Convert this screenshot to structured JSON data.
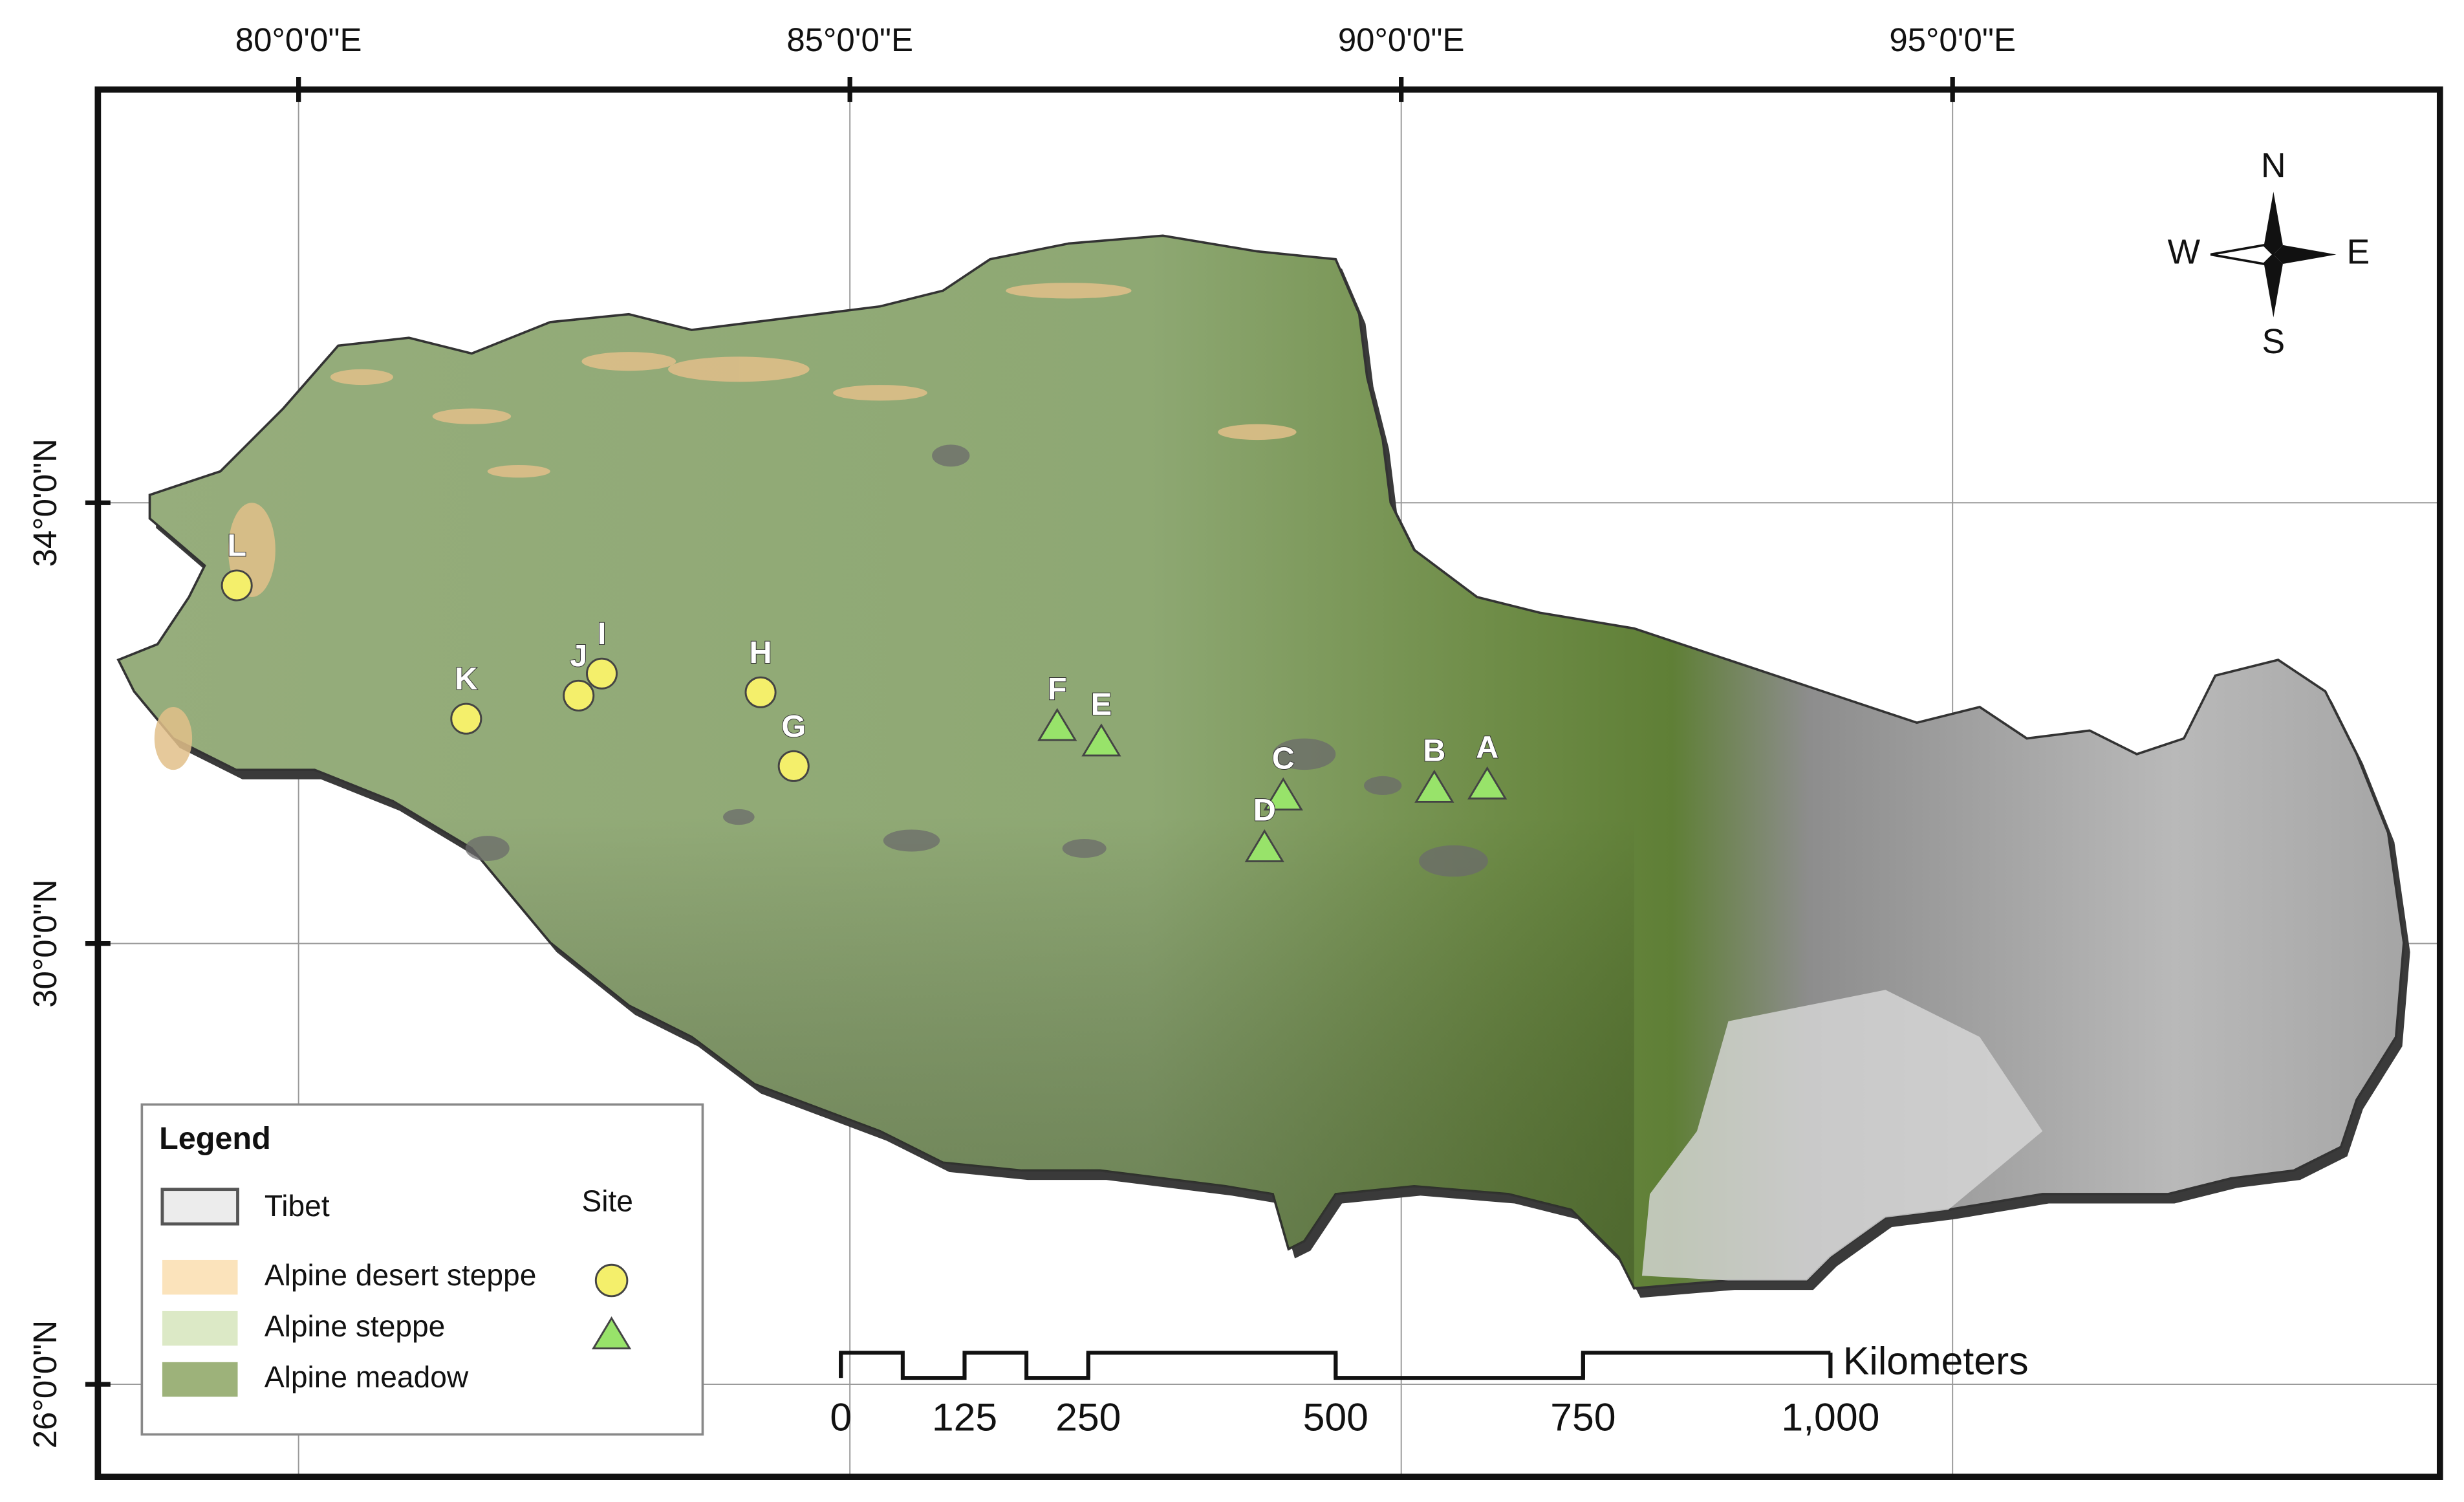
{
  "map": {
    "lon_range": [
      78.18,
      99.42
    ],
    "lat_range": [
      25.16,
      37.75
    ],
    "lon_ticks": [
      {
        "value": 80,
        "label": "80°0'0\"E"
      },
      {
        "value": 85,
        "label": "85°0'0\"E"
      },
      {
        "value": 90,
        "label": "90°0'0\"E"
      },
      {
        "value": 95,
        "label": "95°0'0\"E"
      }
    ],
    "lat_ticks": [
      {
        "value": 34,
        "label": "34°0'0\"N"
      },
      {
        "value": 30,
        "label": "30°0'0\"N"
      },
      {
        "value": 26,
        "label": "26°0'0\"N"
      }
    ],
    "sites": [
      {
        "label": "A",
        "lon": 90.78,
        "lat": 31.42,
        "kind": "triangle"
      },
      {
        "label": "B",
        "lon": 90.3,
        "lat": 31.39,
        "kind": "triangle"
      },
      {
        "label": "C",
        "lon": 88.93,
        "lat": 31.32,
        "kind": "triangle"
      },
      {
        "label": "D",
        "lon": 88.76,
        "lat": 30.85,
        "kind": "triangle"
      },
      {
        "label": "E",
        "lon": 87.28,
        "lat": 31.81,
        "kind": "triangle"
      },
      {
        "label": "F",
        "lon": 86.88,
        "lat": 31.95,
        "kind": "triangle"
      },
      {
        "label": "G",
        "lon": 84.49,
        "lat": 31.61,
        "kind": "circle"
      },
      {
        "label": "H",
        "lon": 84.19,
        "lat": 32.28,
        "kind": "circle"
      },
      {
        "label": "I",
        "lon": 82.75,
        "lat": 32.45,
        "kind": "circle"
      },
      {
        "label": "J",
        "lon": 82.54,
        "lat": 32.25,
        "kind": "circle"
      },
      {
        "label": "K",
        "lon": 81.52,
        "lat": 32.04,
        "kind": "circle"
      },
      {
        "label": "L",
        "lon": 79.44,
        "lat": 33.25,
        "kind": "circle"
      }
    ],
    "circle_color": "#f4ef6b",
    "triangle_color": "#98e36a"
  },
  "legend": {
    "title": "Legend",
    "tibet": "Tibet",
    "site": "Site",
    "items": [
      {
        "label": "Alpine desert steppe",
        "color": "#fbe3bb"
      },
      {
        "label": "Alpine steppe",
        "color": "#dce9c6"
      },
      {
        "label": "Alpine meadow",
        "color": "#9db27a"
      }
    ]
  },
  "compass": {
    "north": "N",
    "south": "S",
    "west": "W",
    "east": "E"
  },
  "scale_bar": {
    "unit": "Kilometers",
    "ticks": [
      {
        "value": 0,
        "label": "0"
      },
      {
        "value": 125,
        "label": "125"
      },
      {
        "value": 250,
        "label": "250"
      },
      {
        "value": 500,
        "label": "500"
      },
      {
        "value": 750,
        "label": "750"
      },
      {
        "value": 1000,
        "label": "1,000"
      }
    ]
  }
}
